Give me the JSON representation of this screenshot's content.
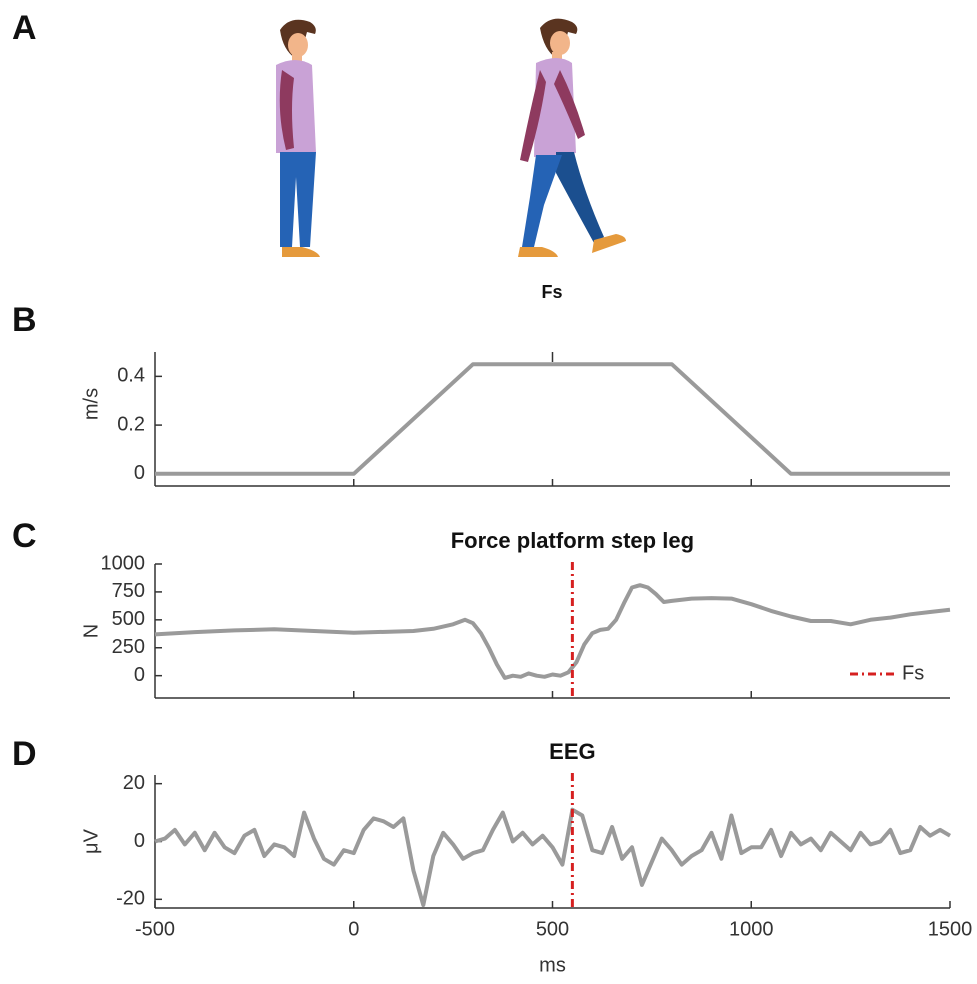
{
  "panels": [
    "A",
    "B",
    "C",
    "D"
  ],
  "illustration": {
    "caption": "Fs"
  },
  "chart_data": [
    {
      "type": "line",
      "ylabel": "m/s",
      "color": "#9a9a9a",
      "x": [
        -500,
        0,
        300,
        800,
        1100,
        1500
      ],
      "values": [
        0,
        0,
        0.45,
        0.45,
        0,
        0
      ],
      "xlim": [
        -500,
        1500
      ],
      "xticks": [
        0,
        500,
        1000
      ],
      "ylim": [
        -0.05,
        0.5
      ],
      "yticks": [
        0,
        0.2,
        0.4
      ]
    },
    {
      "type": "line",
      "title": "Force platform step leg",
      "ylabel": "N",
      "color": "#9a9a9a",
      "x": [
        -500,
        -400,
        -300,
        -200,
        -100,
        0,
        100,
        150,
        200,
        250,
        280,
        300,
        320,
        340,
        360,
        380,
        400,
        420,
        440,
        460,
        480,
        500,
        520,
        540,
        560,
        580,
        600,
        620,
        640,
        660,
        680,
        700,
        720,
        740,
        760,
        780,
        800,
        850,
        900,
        950,
        1000,
        1050,
        1100,
        1150,
        1200,
        1250,
        1300,
        1350,
        1400,
        1450,
        1500
      ],
      "values": [
        370,
        390,
        405,
        415,
        400,
        385,
        395,
        400,
        420,
        460,
        500,
        470,
        380,
        250,
        100,
        -20,
        0,
        -10,
        20,
        0,
        -10,
        10,
        0,
        30,
        120,
        280,
        380,
        410,
        420,
        500,
        650,
        790,
        810,
        790,
        730,
        660,
        670,
        690,
        695,
        690,
        640,
        580,
        530,
        490,
        490,
        460,
        500,
        520,
        550,
        570,
        590
      ],
      "xlim": [
        -500,
        1500
      ],
      "xticks": [
        0,
        500,
        1000
      ],
      "ylim": [
        -200,
        1000
      ],
      "yticks": [
        0,
        250,
        500,
        750,
        1000
      ],
      "vline": 550,
      "vline_color": "#d62020",
      "legend_label": "Fs",
      "legend": "lower right"
    },
    {
      "type": "line",
      "title": "EEG",
      "ylabel": "μV",
      "xlabel": "ms",
      "color": "#9a9a9a",
      "x": [
        -500,
        -475,
        -450,
        -425,
        -400,
        -375,
        -350,
        -325,
        -300,
        -275,
        -250,
        -225,
        -200,
        -175,
        -150,
        -125,
        -100,
        -75,
        -50,
        -25,
        0,
        25,
        50,
        75,
        100,
        125,
        150,
        175,
        200,
        225,
        250,
        275,
        300,
        325,
        350,
        375,
        400,
        425,
        450,
        475,
        500,
        525,
        550,
        575,
        600,
        625,
        650,
        675,
        700,
        725,
        750,
        775,
        800,
        825,
        850,
        875,
        900,
        925,
        950,
        975,
        1000,
        1025,
        1050,
        1075,
        1100,
        1125,
        1150,
        1175,
        1200,
        1225,
        1250,
        1275,
        1300,
        1325,
        1350,
        1375,
        1400,
        1425,
        1450,
        1475,
        1500
      ],
      "values": [
        0,
        1,
        4,
        -1,
        3,
        -3,
        3,
        -2,
        -4,
        2,
        4,
        -5,
        -1,
        -2,
        -5,
        10,
        1,
        -6,
        -8,
        -3,
        -4,
        4,
        8,
        7,
        5,
        8,
        -10,
        -22,
        -5,
        3,
        -1,
        -6,
        -4,
        -3,
        4,
        10,
        0,
        3,
        -1,
        2,
        -2,
        -8,
        11,
        9,
        -3,
        -4,
        5,
        -6,
        -2,
        -15,
        -7,
        1,
        -3,
        -8,
        -5,
        -3,
        3,
        -6,
        9,
        -4,
        -2,
        -2,
        4,
        -5,
        3,
        -1,
        1,
        -3,
        3,
        0,
        -3,
        3,
        -1,
        0,
        4,
        -4,
        -3,
        5,
        2,
        4,
        2
      ],
      "xlim": [
        -500,
        1500
      ],
      "xticks": [
        -500,
        0,
        500,
        1000,
        1500
      ],
      "ylim": [
        -23,
        23
      ],
      "yticks": [
        -20,
        0,
        20
      ],
      "vline": 550,
      "vline_color": "#d62020"
    }
  ]
}
